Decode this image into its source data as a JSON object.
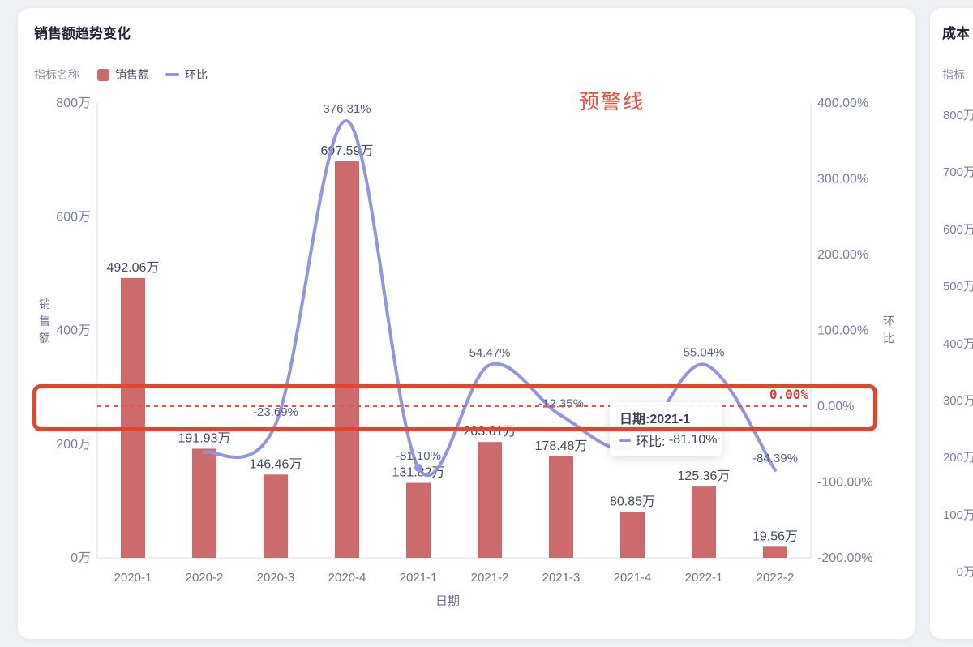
{
  "colors": {
    "bar": "#cd6a6e",
    "line": "#9195e2",
    "band_border": "#e0472d",
    "dashed_line": "#e25944",
    "markline_label": "#d04338",
    "warning_text": "#f14c3e",
    "axis_line": "#e7e9f2",
    "tick_label": "#797fa0",
    "bar_label": "#434b63",
    "line_label": "#585f7e"
  },
  "card1": {
    "title": "销售额趋势变化",
    "legend": {
      "name_label": "指标名称",
      "items": [
        {
          "label": "销售额",
          "marker": "square"
        },
        {
          "label": "环比",
          "marker": "dash"
        }
      ]
    }
  },
  "chart_data": {
    "type": "bar",
    "subtype": "bar+line dual axis",
    "categories": [
      "2020-1",
      "2020-2",
      "2020-3",
      "2020-4",
      "2021-1",
      "2021-2",
      "2021-3",
      "2021-4",
      "2022-1",
      "2022-2"
    ],
    "xlabel": "日期",
    "series": [
      {
        "name": "销售额",
        "type": "bar",
        "axis": "left",
        "unit": "万",
        "values": [
          492.06,
          191.93,
          146.46,
          697.59,
          131.82,
          203.61,
          178.48,
          80.85,
          125.36,
          19.56
        ],
        "labels": [
          "492.06万",
          "191.93万",
          "146.46万",
          "697.59万",
          "131.82万",
          "203.61万",
          "178.48万",
          "80.85万",
          "125.36万",
          "19.56万"
        ]
      },
      {
        "name": "环比",
        "type": "line",
        "axis": "right",
        "unit": "%",
        "values": [
          null,
          -61.0,
          -23.69,
          376.31,
          -81.1,
          54.47,
          -12.35,
          -54.7,
          55.04,
          -84.39
        ],
        "labels": [
          "",
          "",
          "-23.69%",
          "376.31%",
          "-81.10%",
          "54.47%",
          "-12.35%",
          "",
          "55.04%",
          "-84.39%"
        ]
      }
    ],
    "left_axis": {
      "name": "销售额",
      "min": 0,
      "max": 800,
      "ticks": [
        "0万",
        "200万",
        "400万",
        "600万",
        "800万"
      ],
      "tick_values": [
        0,
        200,
        400,
        600,
        800
      ]
    },
    "right_axis": {
      "name": "环比",
      "min": -200,
      "max": 400,
      "ticks": [
        "-200.00%",
        "-100.00%",
        "0.00%",
        "100.00%",
        "200.00%",
        "300.00%",
        "400.00%"
      ],
      "tick_values": [
        -200,
        -100,
        0,
        100,
        200,
        300,
        400
      ]
    },
    "markline": {
      "value": 0,
      "label": "0.00%"
    },
    "highlight_point": {
      "category": "2021-1",
      "index": 4
    },
    "legend_position": "top-left",
    "grid": false
  },
  "annotations": {
    "warning_text": "预警线"
  },
  "tooltip": {
    "title": "日期:2021-1",
    "series_label": "环比:",
    "value": "-81.10%"
  },
  "card2": {
    "title": "成本",
    "legend_name_label": "指标",
    "yticks": [
      "800万",
      "700万",
      "600万",
      "500万",
      "400万",
      "300万",
      "200万",
      "100万",
      "0万"
    ]
  }
}
